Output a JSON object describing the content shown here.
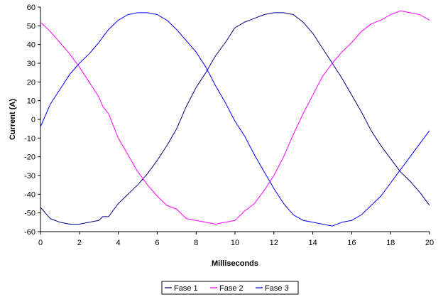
{
  "chart_data": {
    "type": "line",
    "title": "",
    "xlabel": "Milliseconds",
    "ylabel": "Current (A)",
    "xlim": [
      0,
      20
    ],
    "ylim": [
      -60,
      60
    ],
    "x_ticks": [
      "0",
      "2",
      "4",
      "6",
      "8",
      "10",
      "12",
      "14",
      "16",
      "18",
      "20"
    ],
    "y_ticks": [
      "60",
      "50",
      "40",
      "30",
      "20",
      "10",
      "0",
      "-10",
      "-20",
      "-30",
      "-40",
      "-50",
      "-60"
    ],
    "grid": false,
    "legend_position": "bottom",
    "x": [
      0,
      0.5,
      1,
      1.5,
      2,
      2.5,
      3,
      3.2,
      3.5,
      4,
      4.5,
      5,
      5.5,
      6,
      6.5,
      7,
      7.5,
      8,
      8.5,
      9,
      9.5,
      10,
      10.5,
      11,
      11.5,
      12,
      12.5,
      13,
      13.5,
      14,
      14.5,
      15,
      15.5,
      16,
      16.5,
      17,
      17.5,
      18,
      18.5,
      19,
      19.5,
      20
    ],
    "series": [
      {
        "name": "Fase 1",
        "color": "#000080",
        "values": [
          -47,
          -53,
          -55,
          -56,
          -56,
          -55,
          -54,
          -52,
          -52,
          -45,
          -40,
          -35,
          -29,
          -22,
          -14,
          -5,
          7,
          17,
          25,
          34,
          41,
          49,
          52,
          54,
          56,
          57,
          57,
          56,
          52,
          46,
          38,
          30,
          22,
          13,
          4,
          -6,
          -14,
          -21,
          -28,
          -33,
          -39,
          -46
        ]
      },
      {
        "name": "Fase 2",
        "color": "#ff00ff",
        "values": [
          52,
          47,
          41,
          35,
          28,
          20,
          12,
          7,
          3,
          -10,
          -19,
          -28,
          -35,
          -41,
          -46,
          -48,
          -53,
          -54,
          -55,
          -56,
          -55,
          -54,
          -49,
          -45,
          -38,
          -30,
          -20,
          -8,
          3,
          13,
          23,
          30,
          36,
          41,
          47,
          51,
          53,
          56,
          58,
          57,
          56,
          53
        ]
      },
      {
        "name": "Fase 3",
        "color": "#0000ff",
        "values": [
          -4,
          8,
          16,
          24,
          30,
          35,
          41,
          44,
          48,
          53,
          56,
          57,
          57,
          56,
          53,
          48,
          42,
          36,
          28,
          18,
          9,
          -1,
          -9,
          -19,
          -28,
          -37,
          -45,
          -51,
          -54,
          -55,
          -56,
          -57,
          -55,
          -54,
          -51,
          -46,
          -41,
          -34,
          -27,
          -20,
          -13,
          -6
        ]
      }
    ]
  }
}
